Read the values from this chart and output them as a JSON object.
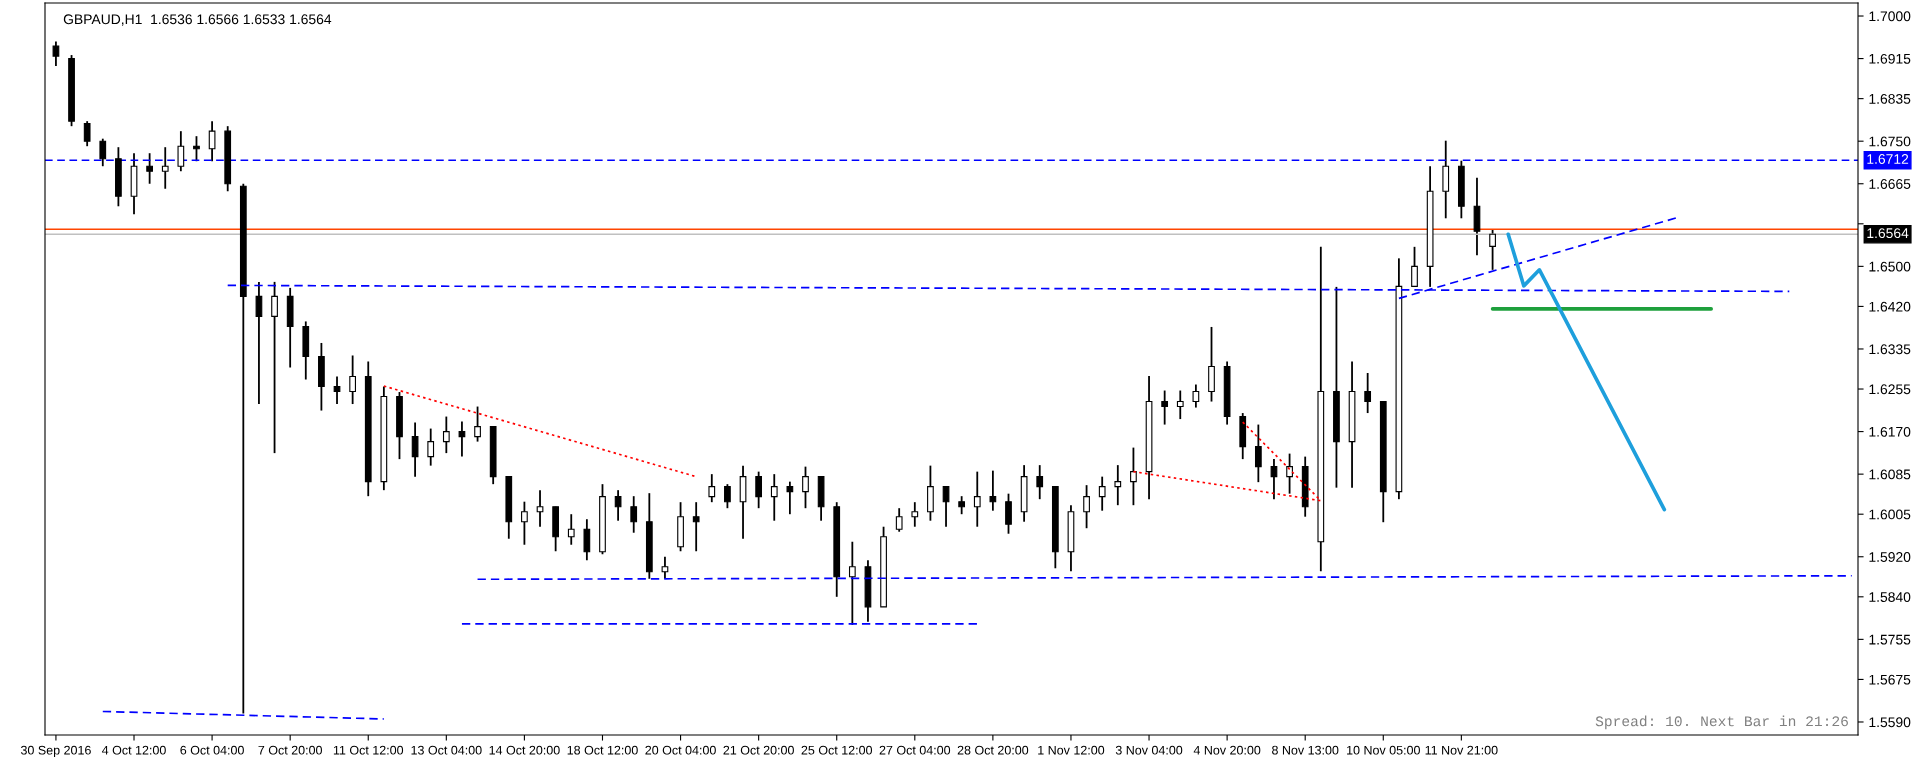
{
  "chart_data": {
    "type": "candlestick",
    "title": "GBPAUD,H1  1.6536 1.6566 1.6533 1.6564",
    "annotations": [
      "Spread: 10. Next Bar in 21:26"
    ],
    "color": "#000000",
    "categories": [
      "30 Sep 2016",
      null,
      null,
      null,
      null,
      "4 Oct 12:00",
      null,
      null,
      null,
      null,
      "6 Oct 04:00",
      null,
      null,
      null,
      null,
      "7 Oct 20:00",
      null,
      null,
      null,
      null,
      "11 Oct 12:00",
      null,
      null,
      null,
      null,
      "13 Oct 04:00",
      null,
      null,
      null,
      null,
      "14 Oct 20:00",
      null,
      null,
      null,
      null,
      "18 Oct 12:00",
      null,
      null,
      null,
      null,
      "20 Oct 04:00",
      null,
      null,
      null,
      null,
      "21 Oct 20:00",
      null,
      null,
      null,
      null,
      "25 Oct 12:00",
      null,
      null,
      null,
      null,
      "27 Oct 04:00",
      null,
      null,
      null,
      null,
      "28 Oct 20:00",
      null,
      null,
      null,
      null,
      "1 Nov 12:00",
      null,
      null,
      null,
      null,
      "3 Nov 04:00",
      null,
      null,
      null,
      null,
      "4 Nov 20:00",
      null,
      null,
      null,
      null,
      "8 Nov 13:00",
      null,
      null,
      null,
      null,
      "10 Nov 05:00",
      null,
      null,
      null,
      null,
      "11 Nov 21:00",
      null,
      null,
      null,
      null,
      null,
      null,
      null,
      null,
      null,
      null,
      null,
      null,
      null,
      null,
      null,
      null,
      null,
      null,
      null,
      null,
      null,
      null,
      null,
      null,
      null
    ],
    "ohlc": [
      [
        1.694,
        1.6949,
        1.69,
        1.692
      ],
      [
        1.6915,
        1.6922,
        1.678,
        1.679
      ],
      [
        1.6785,
        1.679,
        1.674,
        1.675
      ],
      [
        1.675,
        1.6755,
        1.67,
        1.6715
      ],
      [
        1.6715,
        1.6738,
        1.662,
        1.664
      ],
      [
        1.664,
        1.6726,
        1.6604,
        1.67
      ],
      [
        1.67,
        1.6726,
        1.6665,
        1.669
      ],
      [
        1.669,
        1.6738,
        1.6655,
        1.67
      ],
      [
        1.67,
        1.677,
        1.669,
        1.674
      ],
      [
        1.674,
        1.676,
        1.671,
        1.6735
      ],
      [
        1.6735,
        1.679,
        1.671,
        1.677
      ],
      [
        1.677,
        1.678,
        1.665,
        1.6665
      ],
      [
        1.666,
        1.6665,
        1.5607,
        1.644
      ],
      [
        1.644,
        1.6469,
        1.6225,
        1.64
      ],
      [
        1.64,
        1.6469,
        1.6127,
        1.644
      ],
      [
        1.644,
        1.6457,
        1.6298,
        1.638
      ],
      [
        1.638,
        1.639,
        1.6274,
        1.632
      ],
      [
        1.632,
        1.6347,
        1.6212,
        1.626
      ],
      [
        1.626,
        1.628,
        1.6225,
        1.625
      ],
      [
        1.625,
        1.6322,
        1.6225,
        1.628
      ],
      [
        1.628,
        1.631,
        1.6041,
        1.607
      ],
      [
        1.607,
        1.626,
        1.6053,
        1.624
      ],
      [
        1.624,
        1.6249,
        1.6115,
        1.616
      ],
      [
        1.616,
        1.6188,
        1.608,
        1.612
      ],
      [
        1.612,
        1.6176,
        1.6102,
        1.615
      ],
      [
        1.615,
        1.62,
        1.6127,
        1.617
      ],
      [
        1.617,
        1.619,
        1.612,
        1.616
      ],
      [
        1.616,
        1.622,
        1.615,
        1.618
      ],
      [
        1.618,
        1.618,
        1.6065,
        1.608
      ],
      [
        1.608,
        1.608,
        1.5956,
        1.599
      ],
      [
        1.599,
        1.603,
        1.5944,
        1.601
      ],
      [
        1.601,
        1.6053,
        1.598,
        1.602
      ],
      [
        1.602,
        1.602,
        1.5931,
        1.596
      ],
      [
        1.596,
        1.6005,
        1.5944,
        1.5975
      ],
      [
        1.5975,
        1.5995,
        1.5913,
        1.593
      ],
      [
        1.593,
        1.6065,
        1.5925,
        1.604
      ],
      [
        1.604,
        1.6053,
        1.5992,
        1.602
      ],
      [
        1.602,
        1.6041,
        1.5968,
        1.599
      ],
      [
        1.599,
        1.6047,
        1.5876,
        1.589
      ],
      [
        1.589,
        1.592,
        1.5876,
        1.59
      ],
      [
        1.594,
        1.6029,
        1.5931,
        1.6
      ],
      [
        1.6,
        1.6029,
        1.5931,
        1.599
      ],
      [
        1.604,
        1.6085,
        1.6029,
        1.606
      ],
      [
        1.606,
        1.6065,
        1.6017,
        1.603
      ],
      [
        1.603,
        1.6102,
        1.5956,
        1.608
      ],
      [
        1.608,
        1.609,
        1.6017,
        1.604
      ],
      [
        1.604,
        1.6085,
        1.5992,
        1.606
      ],
      [
        1.606,
        1.607,
        1.6005,
        1.605
      ],
      [
        1.605,
        1.61,
        1.6017,
        1.608
      ],
      [
        1.608,
        1.608,
        1.5992,
        1.602
      ],
      [
        1.602,
        1.6029,
        1.584,
        1.588
      ],
      [
        1.588,
        1.595,
        1.5784,
        1.59
      ],
      [
        1.59,
        1.5913,
        1.579,
        1.582
      ],
      [
        1.582,
        1.598,
        1.582,
        1.596
      ],
      [
        1.5975,
        1.6017,
        1.597,
        1.6
      ],
      [
        1.6,
        1.6029,
        1.598,
        1.601
      ],
      [
        1.601,
        1.6102,
        1.5992,
        1.606
      ],
      [
        1.606,
        1.606,
        1.598,
        1.603
      ],
      [
        1.603,
        1.6041,
        1.6005,
        1.602
      ],
      [
        1.602,
        1.609,
        1.598,
        1.604
      ],
      [
        1.604,
        1.6092,
        1.6012,
        1.603
      ],
      [
        1.603,
        1.6046,
        1.5966,
        1.5985
      ],
      [
        1.601,
        1.6103,
        1.599,
        1.608
      ],
      [
        1.608,
        1.6103,
        1.6035,
        1.606
      ],
      [
        1.606,
        1.606,
        1.5897,
        1.593
      ],
      [
        1.593,
        1.6023,
        1.5891,
        1.601
      ],
      [
        1.601,
        1.6063,
        1.5977,
        1.604
      ],
      [
        1.604,
        1.608,
        1.6012,
        1.606
      ],
      [
        1.606,
        1.6103,
        1.6023,
        1.607
      ],
      [
        1.607,
        1.6138,
        1.6023,
        1.609
      ],
      [
        1.609,
        1.6281,
        1.6035,
        1.623
      ],
      [
        1.623,
        1.6252,
        1.6184,
        1.622
      ],
      [
        1.622,
        1.6252,
        1.6195,
        1.623
      ],
      [
        1.623,
        1.6264,
        1.6218,
        1.625
      ],
      [
        1.625,
        1.6379,
        1.623,
        1.63
      ],
      [
        1.63,
        1.631,
        1.6184,
        1.62
      ],
      [
        1.62,
        1.6207,
        1.6115,
        1.614
      ],
      [
        1.614,
        1.6184,
        1.6069,
        1.61
      ],
      [
        1.61,
        1.6115,
        1.6035,
        1.608
      ],
      [
        1.608,
        1.6126,
        1.6046,
        1.61
      ],
      [
        1.61,
        1.612,
        1.6,
        1.602
      ],
      [
        1.595,
        1.6539,
        1.5891,
        1.625
      ],
      [
        1.625,
        1.6459,
        1.6058,
        1.615
      ],
      [
        1.615,
        1.631,
        1.6058,
        1.625
      ],
      [
        1.625,
        1.6287,
        1.6207,
        1.623
      ],
      [
        1.623,
        1.623,
        1.5989,
        1.605
      ],
      [
        1.605,
        1.6516,
        1.6035,
        1.646
      ],
      [
        1.646,
        1.6539,
        1.6459,
        1.65
      ],
      [
        1.65,
        1.67,
        1.6459,
        1.665
      ],
      [
        1.665,
        1.6751,
        1.6596,
        1.67
      ],
      [
        1.67,
        1.6711,
        1.6596,
        1.662
      ],
      [
        1.662,
        1.6677,
        1.6522,
        1.657
      ],
      [
        1.654,
        1.6573,
        1.6493,
        1.6564
      ],
      null,
      null,
      null,
      null,
      null,
      null,
      null,
      null,
      null,
      null,
      null,
      null,
      null,
      null,
      null,
      null,
      null,
      null,
      null,
      null,
      null,
      null,
      null
    ],
    "series": [
      {
        "type": "line",
        "color": "#0000ff",
        "line_style": "dashed",
        "values": [
          null,
          null,
          null,
          null,
          null,
          null,
          null,
          null,
          null,
          null,
          null,
          1.6462,
          null,
          null,
          null,
          null,
          null,
          null,
          null,
          null,
          null,
          null,
          null,
          null,
          null,
          null,
          null,
          null,
          null,
          null,
          null,
          null,
          null,
          null,
          null,
          null,
          null,
          null,
          null,
          null,
          null,
          null,
          null,
          null,
          null,
          null,
          null,
          null,
          null,
          null,
          null,
          null,
          null,
          null,
          null,
          null,
          null,
          null,
          null,
          null,
          null,
          null,
          null,
          null,
          null,
          null,
          null,
          null,
          null,
          null,
          null,
          null,
          null,
          null,
          null,
          null,
          null,
          null,
          null,
          null,
          null,
          null,
          null,
          null,
          null,
          null,
          null,
          null,
          null,
          null,
          null,
          null,
          null,
          null,
          null,
          null,
          null,
          null,
          null,
          null,
          null,
          null,
          null,
          null,
          null,
          null,
          null,
          null,
          null,
          null,
          null,
          1.645,
          null,
          null,
          null,
          null
        ]
      },
      {
        "type": "line",
        "color": "#0000ff",
        "line_style": "dashed",
        "values": [
          null,
          null,
          null,
          null,
          null,
          null,
          null,
          null,
          null,
          null,
          null,
          null,
          null,
          null,
          null,
          null,
          null,
          null,
          null,
          null,
          null,
          null,
          null,
          null,
          null,
          null,
          null,
          1.5875,
          null,
          null,
          null,
          null,
          null,
          null,
          null,
          null,
          null,
          null,
          null,
          null,
          null,
          null,
          null,
          null,
          null,
          null,
          null,
          null,
          null,
          null,
          null,
          null,
          null,
          null,
          null,
          null,
          null,
          null,
          null,
          null,
          null,
          null,
          null,
          null,
          null,
          null,
          null,
          null,
          null,
          null,
          null,
          null,
          null,
          null,
          null,
          null,
          null,
          null,
          null,
          null,
          null,
          null,
          null,
          null,
          null,
          null,
          null,
          null,
          null,
          null,
          null,
          null,
          null,
          null,
          null,
          null,
          null,
          null,
          null,
          null,
          null,
          null,
          null,
          null,
          null,
          null,
          null,
          null,
          null,
          null,
          null,
          null,
          null,
          null,
          null,
          1.5882
        ]
      },
      {
        "type": "line",
        "color": "#0000ff",
        "line_style": "dashed",
        "values": [
          null,
          null,
          null,
          null,
          null,
          null,
          null,
          null,
          null,
          null,
          null,
          null,
          null,
          null,
          null,
          null,
          null,
          null,
          null,
          null,
          null,
          null,
          null,
          null,
          null,
          null,
          1.5786,
          null,
          null,
          null,
          null,
          null,
          null,
          null,
          null,
          null,
          null,
          null,
          null,
          null,
          null,
          null,
          null,
          null,
          null,
          null,
          null,
          null,
          null,
          null,
          null,
          null,
          null,
          null,
          null,
          null,
          null,
          null,
          null,
          1.5786,
          null,
          null,
          null,
          null,
          null,
          null,
          null,
          null,
          null,
          null,
          null,
          null,
          null,
          null,
          null,
          null,
          null,
          null,
          null,
          null,
          null,
          null,
          null,
          null,
          null,
          null,
          null,
          null,
          null,
          null,
          null,
          null,
          null,
          null,
          null,
          null,
          null,
          null,
          null,
          null,
          null,
          null,
          null,
          null,
          null,
          null,
          null,
          null,
          null,
          null,
          null,
          null,
          null,
          null,
          null,
          null
        ]
      },
      {
        "type": "line",
        "color": "#0000ff",
        "line_style": "dashed",
        "values": [
          null,
          null,
          null,
          1.5611,
          null,
          null,
          null,
          null,
          null,
          null,
          null,
          null,
          null,
          null,
          null,
          null,
          null,
          null,
          null,
          null,
          null,
          1.5596,
          null,
          null,
          null,
          null,
          null,
          null,
          null,
          null,
          null,
          null,
          null,
          null,
          null,
          null,
          null,
          null,
          null,
          null,
          null,
          null,
          null,
          null,
          null,
          null,
          null,
          null,
          null,
          null,
          null,
          null,
          null,
          null,
          null,
          null,
          null,
          null,
          null,
          null,
          null,
          null,
          null,
          null,
          null,
          null,
          null,
          null,
          null,
          null,
          null,
          null,
          null,
          null,
          null,
          null,
          null,
          null,
          null,
          null,
          null,
          null,
          null,
          null,
          null,
          null,
          null,
          null,
          null,
          null,
          null,
          null,
          null,
          null,
          null,
          null,
          null,
          null,
          null,
          null,
          null,
          null,
          null,
          null,
          null,
          null,
          null,
          null,
          null,
          null,
          null,
          null,
          null,
          null,
          null,
          null
        ]
      },
      {
        "type": "line",
        "color": "#0000ff",
        "line_style": "dashed",
        "values": [
          null,
          null,
          null,
          null,
          null,
          null,
          null,
          null,
          null,
          null,
          null,
          null,
          null,
          null,
          null,
          null,
          null,
          null,
          null,
          null,
          null,
          null,
          null,
          null,
          null,
          null,
          null,
          null,
          null,
          null,
          null,
          null,
          null,
          null,
          null,
          null,
          null,
          null,
          null,
          null,
          null,
          null,
          null,
          null,
          null,
          null,
          null,
          null,
          null,
          null,
          null,
          null,
          null,
          null,
          null,
          null,
          null,
          null,
          null,
          null,
          null,
          null,
          null,
          null,
          null,
          null,
          null,
          null,
          null,
          null,
          null,
          null,
          null,
          null,
          null,
          null,
          null,
          null,
          null,
          null,
          null,
          null,
          null,
          null,
          null,
          null,
          1.6436,
          null,
          null,
          null,
          null,
          null,
          null,
          null,
          null,
          null,
          null,
          null,
          null,
          null,
          null,
          null,
          null,
          null,
          1.6599,
          null,
          null,
          null,
          null,
          null,
          null,
          null,
          null,
          null,
          null,
          null
        ]
      },
      {
        "type": "line",
        "color": "#ff0000",
        "line_style": "dotted",
        "values": [
          null,
          null,
          null,
          null,
          null,
          null,
          null,
          null,
          null,
          null,
          null,
          null,
          null,
          null,
          null,
          null,
          null,
          null,
          null,
          null,
          null,
          1.6261,
          null,
          null,
          null,
          null,
          null,
          null,
          null,
          null,
          null,
          null,
          null,
          null,
          null,
          null,
          null,
          null,
          null,
          null,
          null,
          1.608,
          null,
          null,
          null,
          null,
          null,
          null,
          null,
          null,
          null,
          null,
          null,
          null,
          null,
          null,
          null,
          null,
          null,
          null,
          null,
          null,
          null,
          null,
          null,
          null,
          null,
          null,
          null,
          null,
          null,
          null,
          null,
          null,
          null,
          null,
          null,
          null,
          null,
          null,
          null,
          null,
          null,
          null,
          null,
          null,
          null,
          null,
          null,
          null,
          null,
          null,
          null,
          null,
          null,
          null,
          null,
          null,
          null,
          null,
          null,
          null,
          null,
          null,
          null,
          null,
          null,
          null,
          null,
          null,
          null,
          null,
          null,
          null,
          null,
          null
        ]
      },
      {
        "type": "line",
        "color": "#ff0000",
        "line_style": "dotted",
        "values": [
          null,
          null,
          null,
          null,
          null,
          null,
          null,
          null,
          null,
          null,
          null,
          null,
          null,
          null,
          null,
          null,
          null,
          null,
          null,
          null,
          null,
          null,
          null,
          null,
          null,
          null,
          null,
          null,
          null,
          null,
          null,
          null,
          null,
          null,
          null,
          null,
          null,
          null,
          null,
          null,
          null,
          null,
          null,
          null,
          null,
          null,
          null,
          null,
          null,
          null,
          null,
          null,
          null,
          null,
          null,
          null,
          null,
          null,
          null,
          null,
          null,
          null,
          null,
          null,
          null,
          null,
          null,
          null,
          null,
          1.609,
          null,
          null,
          null,
          null,
          null,
          null,
          null,
          null,
          null,
          null,
          null,
          1.6032,
          null,
          null,
          null,
          null,
          null,
          null,
          null,
          null,
          null,
          null,
          null,
          null,
          null,
          null,
          null,
          null,
          null,
          null,
          null,
          null,
          null,
          null,
          null,
          null,
          null,
          null,
          null,
          null,
          null,
          null,
          null,
          null,
          null,
          null
        ]
      },
      {
        "type": "line",
        "color": "#ff0000",
        "line_style": "dotted",
        "values": [
          null,
          null,
          null,
          null,
          null,
          null,
          null,
          null,
          null,
          null,
          null,
          null,
          null,
          null,
          null,
          null,
          null,
          null,
          null,
          null,
          null,
          null,
          null,
          null,
          null,
          null,
          null,
          null,
          null,
          null,
          null,
          null,
          null,
          null,
          null,
          null,
          null,
          null,
          null,
          null,
          null,
          null,
          null,
          null,
          null,
          null,
          null,
          null,
          null,
          null,
          null,
          null,
          null,
          null,
          null,
          null,
          null,
          null,
          null,
          null,
          null,
          null,
          null,
          null,
          null,
          null,
          null,
          null,
          null,
          null,
          null,
          null,
          null,
          null,
          null,
          null,
          1.6189,
          null,
          null,
          null,
          null,
          1.6032,
          null,
          null,
          null,
          null,
          null,
          null,
          null,
          null,
          null,
          null,
          null,
          null,
          null,
          null,
          null,
          null,
          null,
          null,
          null,
          null,
          null,
          null,
          null,
          null,
          null,
          null,
          null,
          null,
          null,
          null,
          null,
          null,
          null,
          null
        ]
      },
      {
        "type": "line",
        "color": "#1ea03c",
        "line_style": "solid",
        "values": [
          null,
          null,
          null,
          null,
          null,
          null,
          null,
          null,
          null,
          null,
          null,
          null,
          null,
          null,
          null,
          null,
          null,
          null,
          null,
          null,
          null,
          null,
          null,
          null,
          null,
          null,
          null,
          null,
          null,
          null,
          null,
          null,
          null,
          null,
          null,
          null,
          null,
          null,
          null,
          null,
          null,
          null,
          null,
          null,
          null,
          null,
          null,
          null,
          null,
          null,
          null,
          null,
          null,
          null,
          null,
          null,
          null,
          null,
          null,
          null,
          null,
          null,
          null,
          null,
          null,
          null,
          null,
          null,
          null,
          null,
          null,
          null,
          null,
          null,
          null,
          null,
          null,
          null,
          null,
          null,
          null,
          null,
          null,
          null,
          null,
          null,
          null,
          null,
          null,
          null,
          null,
          null,
          1.6415,
          null,
          null,
          null,
          null,
          null,
          null,
          null,
          null,
          null,
          null,
          null,
          null,
          null,
          1.6415,
          null,
          null,
          null,
          null,
          null,
          null,
          null,
          null,
          null
        ]
      },
      {
        "type": "line",
        "color": "#1e9fdc",
        "line_style": "solid",
        "values": [
          null,
          null,
          null,
          null,
          null,
          null,
          null,
          null,
          null,
          null,
          null,
          null,
          null,
          null,
          null,
          null,
          null,
          null,
          null,
          null,
          null,
          null,
          null,
          null,
          null,
          null,
          null,
          null,
          null,
          null,
          null,
          null,
          null,
          null,
          null,
          null,
          null,
          null,
          null,
          null,
          null,
          null,
          null,
          null,
          null,
          null,
          null,
          null,
          null,
          null,
          null,
          null,
          null,
          null,
          null,
          null,
          null,
          null,
          null,
          null,
          null,
          null,
          null,
          null,
          null,
          null,
          null,
          null,
          null,
          null,
          null,
          null,
          null,
          null,
          null,
          null,
          null,
          null,
          null,
          null,
          null,
          null,
          null,
          null,
          null,
          null,
          null,
          null,
          null,
          null,
          null,
          null,
          null,
          1.6564,
          1.6461,
          1.6493,
          null,
          null,
          null,
          null,
          null,
          null,
          null,
          1.6014,
          null,
          null,
          null,
          null,
          null,
          null,
          null,
          null,
          null,
          null,
          null,
          null
        ]
      }
    ],
    "ref_lines": [
      {
        "axis": "y",
        "value": 1.6712,
        "label": "1.6712",
        "color": "#0000ff",
        "line_style": "dashed"
      },
      {
        "axis": "y",
        "value": 1.6574,
        "color": "#ff4500",
        "line_style": "solid"
      },
      {
        "axis": "y",
        "value": 1.6564,
        "label": "1.6564",
        "color": "#c0c0c0",
        "line_style": "solid"
      }
    ],
    "ylim": [
      1.5564,
      1.7026
    ],
    "yticks": [
      {
        "value": 1.7,
        "label": "1.7000"
      },
      {
        "value": 1.6915,
        "label": "1.6915"
      },
      {
        "value": 1.6835,
        "label": "1.6835"
      },
      {
        "value": 1.675,
        "label": "1.6750"
      },
      {
        "value": 1.6665,
        "label": "1.6665"
      },
      {
        "value": 1.6585,
        "label": null
      },
      {
        "value": 1.65,
        "label": "1.6500"
      },
      {
        "value": 1.642,
        "label": "1.6420"
      },
      {
        "value": 1.6335,
        "label": "1.6335"
      },
      {
        "value": 1.6255,
        "label": "1.6255"
      },
      {
        "value": 1.617,
        "label": "1.6170"
      },
      {
        "value": 1.6085,
        "label": "1.6085"
      },
      {
        "value": 1.6005,
        "label": "1.6005"
      },
      {
        "value": 1.592,
        "label": "1.5920"
      },
      {
        "value": 1.584,
        "label": "1.5840"
      },
      {
        "value": 1.5755,
        "label": "1.5755"
      },
      {
        "value": 1.5675,
        "label": "1.5675"
      },
      {
        "value": 1.559,
        "label": "1.5590"
      }
    ],
    "grid": false,
    "legend": false
  }
}
